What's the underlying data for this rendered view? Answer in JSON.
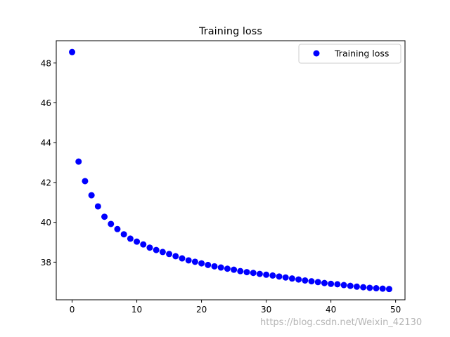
{
  "chart_data": {
    "type": "scatter",
    "title": "Training loss",
    "xlabel": "",
    "ylabel": "",
    "xlim": [
      -2.45,
      51.45
    ],
    "ylim": [
      36.11,
      49.12
    ],
    "xticks": [
      0,
      10,
      20,
      30,
      40,
      50
    ],
    "yticks": [
      38,
      40,
      42,
      44,
      46,
      48
    ],
    "grid": false,
    "legend": {
      "placement": "top-right",
      "entries": [
        "Training loss"
      ]
    },
    "series": [
      {
        "name": "Training loss",
        "color": "#0000ff",
        "marker": "circle",
        "x": [
          0,
          1,
          2,
          3,
          4,
          5,
          6,
          7,
          8,
          9,
          10,
          11,
          12,
          13,
          14,
          15,
          16,
          17,
          18,
          19,
          20,
          21,
          22,
          23,
          24,
          25,
          26,
          27,
          28,
          29,
          30,
          31,
          32,
          33,
          34,
          35,
          36,
          37,
          38,
          39,
          40,
          41,
          42,
          43,
          44,
          45,
          46,
          47,
          48,
          49
        ],
        "y": [
          48.55,
          43.05,
          42.07,
          41.36,
          40.8,
          40.28,
          39.92,
          39.66,
          39.4,
          39.18,
          39.03,
          38.89,
          38.73,
          38.61,
          38.51,
          38.41,
          38.3,
          38.19,
          38.09,
          38.02,
          37.94,
          37.86,
          37.79,
          37.73,
          37.67,
          37.62,
          37.55,
          37.5,
          37.46,
          37.41,
          37.37,
          37.33,
          37.28,
          37.23,
          37.18,
          37.13,
          37.08,
          37.04,
          37.0,
          36.95,
          36.91,
          36.89,
          36.85,
          36.81,
          36.77,
          36.74,
          36.71,
          36.69,
          36.67,
          36.65
        ]
      }
    ]
  },
  "watermark": "https://blog.csdn.net/Weixin_42130"
}
